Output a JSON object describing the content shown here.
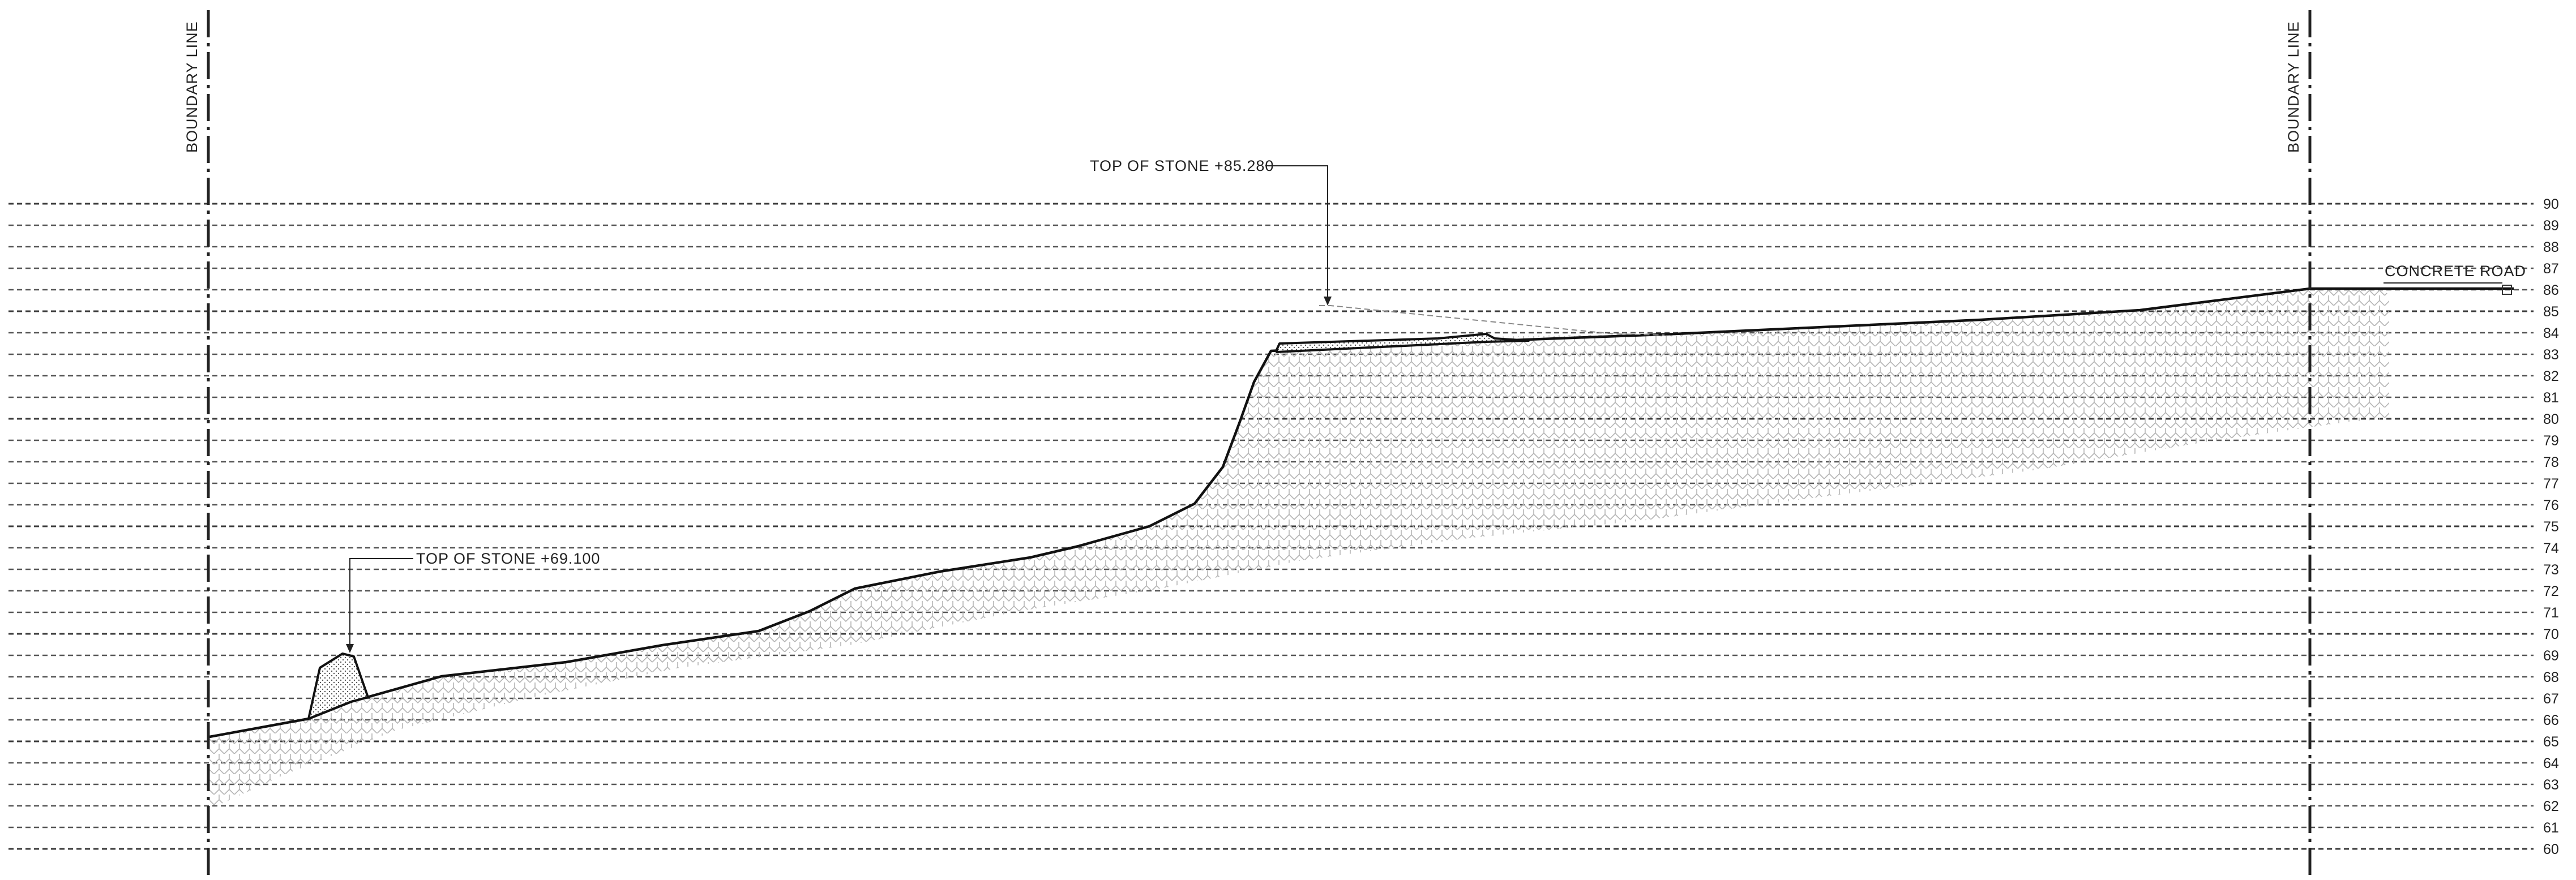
{
  "drawing": {
    "boundary_label": "BOUNDARY LINE",
    "elevations": [
      "90",
      "89",
      "88",
      "87",
      "86",
      "85",
      "84",
      "83",
      "82",
      "81",
      "80",
      "79",
      "78",
      "77",
      "76",
      "75",
      "74",
      "73",
      "72",
      "71",
      "70",
      "69",
      "68",
      "67",
      "66",
      "65",
      "64",
      "63",
      "62",
      "61",
      "60"
    ],
    "annotations": {
      "top_of_stone_upper": "TOP OF STONE +85.280",
      "top_of_stone_lower": "TOP OF STONE +69.100",
      "concrete_road": "CONCRETE ROAD"
    },
    "colors": {
      "line": "#111111",
      "grid": "#555555",
      "hatch": "#b0b0b0"
    }
  }
}
